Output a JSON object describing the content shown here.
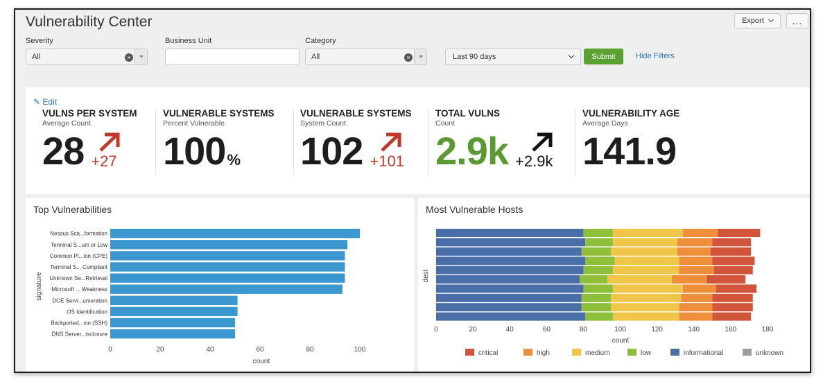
{
  "header": {
    "title": "Vulnerability Center",
    "export_label": "Export",
    "more_label": "..."
  },
  "filters": {
    "severity": {
      "label": "Severity",
      "value": "All"
    },
    "business_unit": {
      "label": "Business Unit",
      "value": ""
    },
    "category": {
      "label": "Category",
      "value": "All"
    },
    "time_range": {
      "value": "Last 90 days"
    },
    "submit_label": "Submit",
    "hide_filters_label": "Hide Filters"
  },
  "kpis": {
    "edit_label": "Edit",
    "items": [
      {
        "title": "VULNS PER SYSTEM",
        "subtitle": "Average Count",
        "value": "28",
        "unit": "",
        "trend": "+27",
        "trend_color": "#c0392b",
        "value_color": "#1e1e1e"
      },
      {
        "title": "VULNERABLE SYSTEMS",
        "subtitle": "Percent Vulnerable",
        "value": "100",
        "unit": "%",
        "trend": "",
        "trend_color": "",
        "value_color": "#1e1e1e"
      },
      {
        "title": "VULNERABLE SYSTEMS",
        "subtitle": "System Count",
        "value": "102",
        "unit": "",
        "trend": "+101",
        "trend_color": "#c0392b",
        "value_color": "#1e1e1e"
      },
      {
        "title": "TOTAL VULNS",
        "subtitle": "Count",
        "value": "2.9k",
        "unit": "",
        "trend": "+2.9k",
        "trend_color": "#111111",
        "value_color": "#5a9a32"
      },
      {
        "title": "VULNERABILITY AGE",
        "subtitle": "Average Days",
        "value": "141.9",
        "unit": "",
        "trend": "",
        "trend_color": "",
        "value_color": "#1e1e1e"
      }
    ]
  },
  "panels": {
    "top_vulns_title": "Top Vulnerabilities",
    "hosts_title": "Most Vulnerable Hosts"
  },
  "chart_data": [
    {
      "type": "bar",
      "orientation": "horizontal",
      "title": "Top Vulnerabilities",
      "xlabel": "count",
      "ylabel": "signature",
      "xlim": [
        0,
        110
      ],
      "xticks": [
        0,
        20,
        40,
        60,
        80,
        100
      ],
      "categories": [
        "Nessus Sca...formation",
        "Terminal S...um or Low",
        "Common Pl...ion (CPE)",
        "Terminal S... Compliant",
        "Unknown Se...Retrieval",
        "Microsoft ... Weakness",
        "DCE Servi...umeration",
        "OS Identification",
        "Backported...ion (SSH)",
        "DNS Server...isclosure"
      ],
      "values": [
        100,
        95,
        94,
        94,
        94,
        93,
        51,
        51,
        50,
        50
      ],
      "color": "#3b97cf"
    },
    {
      "type": "bar",
      "orientation": "horizontal",
      "stacked": true,
      "title": "Most Vulnerable Hosts",
      "xlabel": "count",
      "ylabel": "dest",
      "xlim": [
        0,
        180
      ],
      "xticks": [
        0,
        20,
        40,
        60,
        80,
        100,
        120,
        140,
        160,
        180
      ],
      "legend_position": "bottom",
      "stack_order": [
        "informational",
        "low",
        "medium",
        "high",
        "critical"
      ],
      "series": [
        {
          "name": "critical",
          "color": "#d0553a",
          "values": [
            23,
            21,
            22,
            23,
            21,
            21,
            22,
            22,
            22,
            21
          ]
        },
        {
          "name": "high",
          "color": "#ef8f3c",
          "values": [
            19,
            19,
            18,
            18,
            19,
            19,
            18,
            17,
            18,
            18
          ]
        },
        {
          "name": "medium",
          "color": "#f0c64a",
          "values": [
            38,
            35,
            36,
            35,
            36,
            35,
            38,
            38,
            37,
            36
          ]
        },
        {
          "name": "low",
          "color": "#8fbf3a",
          "values": [
            16,
            15,
            16,
            16,
            16,
            15,
            16,
            16,
            16,
            15
          ]
        },
        {
          "name": "informational",
          "color": "#4a6fa8",
          "values": [
            80,
            81,
            79,
            81,
            80,
            78,
            80,
            79,
            79,
            81
          ]
        },
        {
          "name": "unknown",
          "color": "#9e9e9e",
          "values": [
            0,
            0,
            0,
            0,
            0,
            0,
            0,
            0,
            0,
            0
          ]
        }
      ]
    }
  ]
}
